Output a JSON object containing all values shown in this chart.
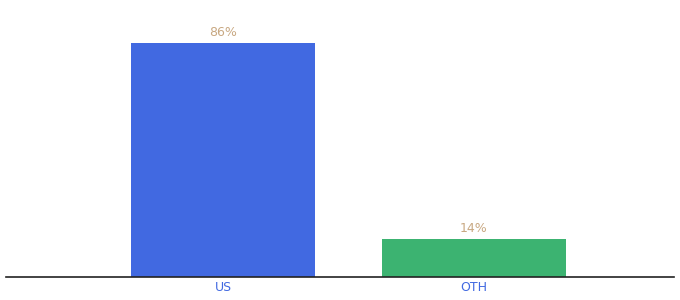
{
  "categories": [
    "US",
    "OTH"
  ],
  "values": [
    86,
    14
  ],
  "bar_colors": [
    "#4169E1",
    "#3CB371"
  ],
  "label_color": "#C8A882",
  "label_fontsize": 9,
  "xlabel_fontsize": 9,
  "xlabel_color": "#4169E1",
  "background_color": "#ffffff",
  "ylim": [
    0,
    100
  ],
  "bar_width": 0.55,
  "xlim": [
    -0.3,
    1.7
  ]
}
